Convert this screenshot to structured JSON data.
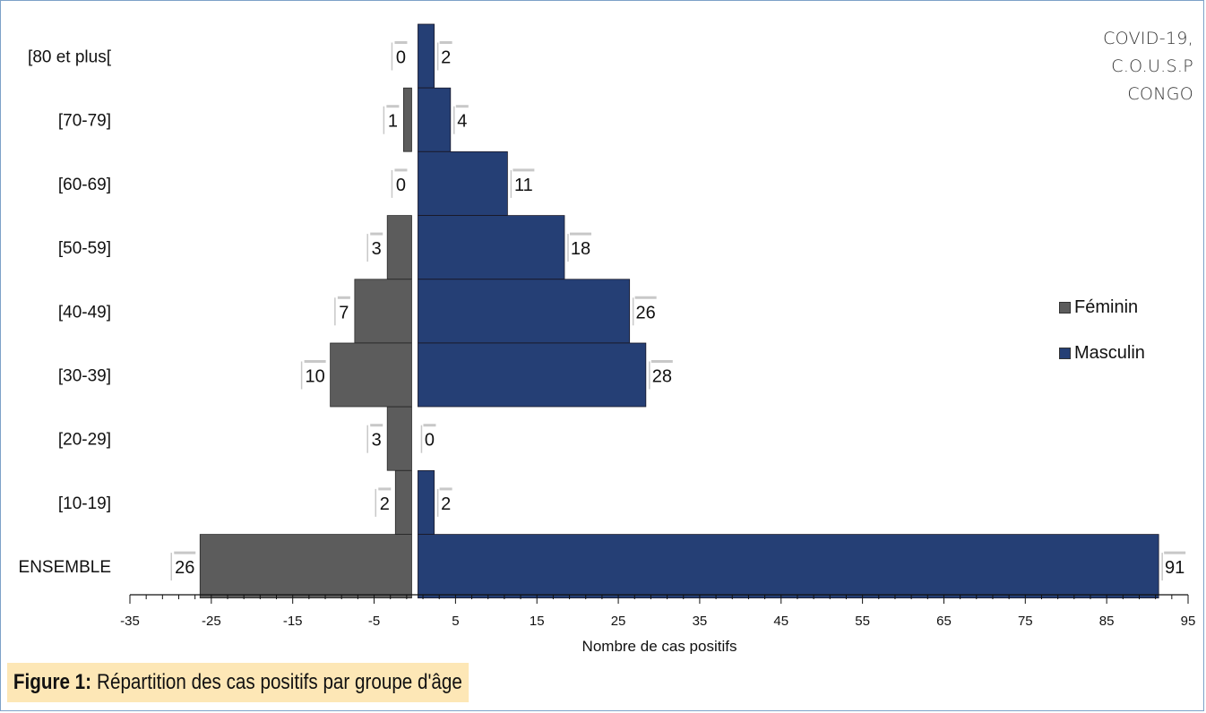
{
  "corner_note": [
    "COVID-19,",
    "C.O.U.S.P",
    "CONGO"
  ],
  "caption": {
    "label": "Figure 1:",
    "text": "Répartition des cas positifs par groupe d'âge"
  },
  "colors": {
    "feminin": "#5c5c5c",
    "masculin": "#253f75",
    "frame": "#7ea2c8",
    "caption_bg": "#fde7b6"
  },
  "chart_data": {
    "type": "bar",
    "orientation": "horizontal",
    "subtype": "population-pyramid",
    "title": "",
    "xlabel": "Nombre de cas positifs",
    "ylabel": "",
    "xlim": [
      -35,
      95
    ],
    "xticks": [
      -35,
      -25,
      -15,
      -5,
      5,
      15,
      25,
      35,
      45,
      55,
      65,
      75,
      85,
      95
    ],
    "grid": false,
    "legend_position": "right",
    "categories": [
      "[80 et plus[",
      "[70-79]",
      "[60-69]",
      "[50-59]",
      "[40-49]",
      "[30-39]",
      "[20-29]",
      "[10-19]",
      "ENSEMBLE"
    ],
    "series": [
      {
        "name": "Féminin",
        "values": [
          0,
          1,
          0,
          3,
          7,
          10,
          3,
          2,
          26
        ],
        "plotted_as": "negative"
      },
      {
        "name": "Masculin",
        "values": [
          2,
          4,
          11,
          18,
          26,
          28,
          0,
          2,
          91
        ],
        "plotted_as": "positive"
      }
    ]
  }
}
